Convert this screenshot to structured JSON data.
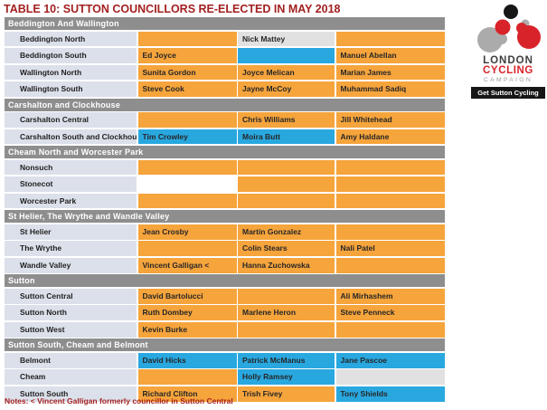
{
  "title": "TABLE 10: SUTTON COUNCILLORS RE-ELECTED IN MAY 2018",
  "notes": "Notes: < Vincent Galligan formerly councillor in Sutton Central",
  "colors": {
    "title_red": "#A32020",
    "cell_orange": "#F6A43C",
    "cell_blue": "#29A8E0",
    "cell_gray": "#E1E1E1",
    "group_header_bg": "#8E8E8E",
    "ward_label_bg": "#DBE0EA",
    "logo_red": "#D8232A",
    "logo_gray": "#ABABAB",
    "logo_black": "#161616"
  },
  "logo": {
    "line1": "LONDON",
    "line2": "CYCLING",
    "line3": "CAMPAIGN",
    "button": "Get Sutton Cycling"
  },
  "table": {
    "groups": [
      {
        "name": "Beddington And Wallington",
        "rows": [
          {
            "ward": "Beddington North",
            "cells": [
              {
                "text": "",
                "bg": "orange"
              },
              {
                "text": "Nick Mattey",
                "bg": "gray"
              },
              {
                "text": "",
                "bg": "orange"
              }
            ]
          },
          {
            "ward": "Beddington South",
            "cells": [
              {
                "text": "Ed Joyce",
                "bg": "orange"
              },
              {
                "text": "",
                "bg": "blue"
              },
              {
                "text": "Manuel Abellan",
                "bg": "orange"
              }
            ]
          },
          {
            "ward": "Wallington North",
            "cells": [
              {
                "text": "Sunita Gordon",
                "bg": "orange"
              },
              {
                "text": "Joyce Melican",
                "bg": "orange"
              },
              {
                "text": "Marian James",
                "bg": "orange"
              }
            ]
          },
          {
            "ward": "Wallington South",
            "cells": [
              {
                "text": "Steve Cook",
                "bg": "orange"
              },
              {
                "text": "Jayne McCoy",
                "bg": "orange"
              },
              {
                "text": "Muhammad Sadiq",
                "bg": "orange"
              }
            ]
          }
        ]
      },
      {
        "name": "Carshalton and Clockhouse",
        "rows": [
          {
            "ward": "Carshalton Central",
            "cells": [
              {
                "text": "",
                "bg": "orange"
              },
              {
                "text": "Chris Williams",
                "bg": "orange"
              },
              {
                "text": "Jill Whitehead",
                "bg": "orange"
              }
            ]
          },
          {
            "ward": "Carshalton South and Clockhouse",
            "cells": [
              {
                "text": "Tim Crowley",
                "bg": "blue"
              },
              {
                "text": "Moira Butt",
                "bg": "blue"
              },
              {
                "text": "Amy Haldane",
                "bg": "orange"
              }
            ]
          }
        ]
      },
      {
        "name": "Cheam North and Worcester Park",
        "rows": [
          {
            "ward": "Nonsuch",
            "cells": [
              {
                "text": "",
                "bg": "orange"
              },
              {
                "text": "",
                "bg": "orange"
              },
              {
                "text": "",
                "bg": "orange"
              }
            ]
          },
          {
            "ward": "Stonecot",
            "cells": [
              {
                "text": "",
                "bg": "white"
              },
              {
                "text": "",
                "bg": "orange"
              },
              {
                "text": "",
                "bg": "orange"
              }
            ]
          },
          {
            "ward": "Worcester Park",
            "cells": [
              {
                "text": "",
                "bg": "orange"
              },
              {
                "text": "",
                "bg": "orange"
              },
              {
                "text": "",
                "bg": "orange"
              }
            ]
          }
        ]
      },
      {
        "name": "St Helier, The Wrythe and Wandle Valley",
        "rows": [
          {
            "ward": "St Helier",
            "cells": [
              {
                "text": "Jean Crosby",
                "bg": "orange"
              },
              {
                "text": "Martin Gonzalez",
                "bg": "orange"
              },
              {
                "text": "",
                "bg": "orange"
              }
            ]
          },
          {
            "ward": "The Wrythe",
            "cells": [
              {
                "text": "",
                "bg": "orange"
              },
              {
                "text": "Colin Stears",
                "bg": "orange"
              },
              {
                "text": "Nali Patel",
                "bg": "orange"
              }
            ]
          },
          {
            "ward": "Wandle Valley",
            "cells": [
              {
                "text": "Vincent Galligan <",
                "bg": "orange"
              },
              {
                "text": "Hanna Zuchowska",
                "bg": "orange"
              },
              {
                "text": "",
                "bg": "orange"
              }
            ]
          }
        ]
      },
      {
        "name": "Sutton",
        "rows": [
          {
            "ward": "Sutton Central",
            "cells": [
              {
                "text": "David Bartolucci",
                "bg": "orange"
              },
              {
                "text": "",
                "bg": "orange"
              },
              {
                "text": "Ali Mirhashem",
                "bg": "orange"
              }
            ]
          },
          {
            "ward": "Sutton North",
            "cells": [
              {
                "text": "Ruth Dombey",
                "bg": "orange"
              },
              {
                "text": "Marlene Heron",
                "bg": "orange"
              },
              {
                "text": "Steve Penneck",
                "bg": "orange"
              }
            ]
          },
          {
            "ward": "Sutton West",
            "cells": [
              {
                "text": "Kevin Burke",
                "bg": "orange"
              },
              {
                "text": "",
                "bg": "orange"
              },
              {
                "text": "",
                "bg": "orange"
              }
            ]
          }
        ]
      },
      {
        "name": "Sutton South, Cheam and Belmont",
        "rows": [
          {
            "ward": "Belmont",
            "cells": [
              {
                "text": "David Hicks",
                "bg": "blue"
              },
              {
                "text": "Patrick McManus",
                "bg": "blue"
              },
              {
                "text": "Jane Pascoe",
                "bg": "blue"
              }
            ]
          },
          {
            "ward": "Cheam",
            "cells": [
              {
                "text": "",
                "bg": "orange"
              },
              {
                "text": "Holly Ramsey",
                "bg": "blue"
              },
              {
                "text": "",
                "bg": "gray"
              }
            ]
          },
          {
            "ward": "Sutton South",
            "cells": [
              {
                "text": "Richard Clifton",
                "bg": "orange"
              },
              {
                "text": "Trish Fivey",
                "bg": "orange"
              },
              {
                "text": "Tony Shields",
                "bg": "blue"
              }
            ]
          }
        ]
      }
    ]
  }
}
